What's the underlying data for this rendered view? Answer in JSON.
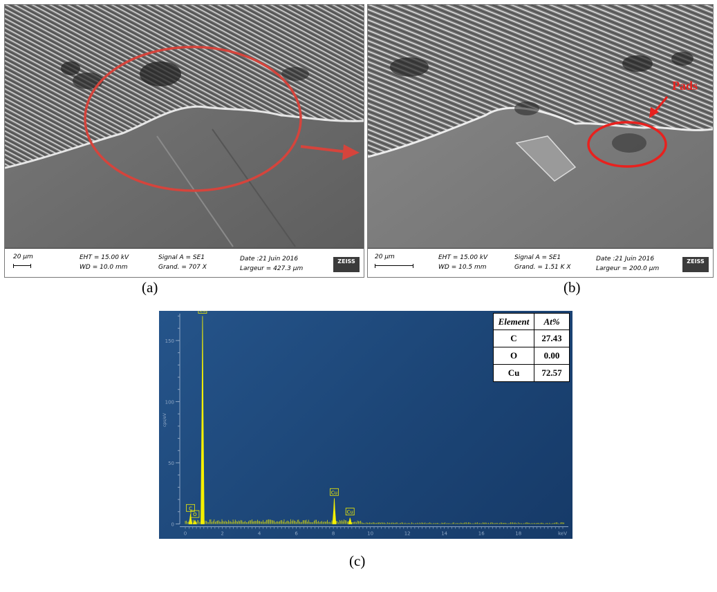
{
  "panels": {
    "a": {
      "label": "(a)",
      "scale": "20 µm",
      "eht": "EHT = 15.00 kV",
      "wd": "WD = 10.0 mm",
      "signal": "Signal A = SE1",
      "grand": "Grand. =    707 X",
      "date": "Date :21 Juin 2016",
      "largeur": "Largeur = 427.3 µm",
      "logo": "ZEISS"
    },
    "b": {
      "label": "(b)",
      "scale": "20 µm",
      "eht": "EHT = 15.00 kV",
      "wd": "WD = 10.5 mm",
      "signal": "Signal A = SE1",
      "grand": "Grand. =    1.51 K X",
      "date": "Date :21 Juin 2016",
      "largeur": "Largeur = 200.0 µm",
      "logo": "ZEISS",
      "annotation": "Pads"
    },
    "c": {
      "label": "(c)"
    }
  },
  "colors": {
    "annotation_red": "#e8211e",
    "eds_background": "#1e4a7c",
    "spectrum_yellow": "#f5f000",
    "axis_text": "#8fa7c4"
  },
  "table": {
    "headers": [
      "Element",
      "At%"
    ],
    "rows": [
      {
        "element": "C",
        "at": "27.43"
      },
      {
        "element": "O",
        "at": "0.00"
      },
      {
        "element": "Cu",
        "at": "72.57"
      }
    ]
  },
  "chart_data": {
    "type": "line",
    "title": "",
    "xlabel": "keV",
    "ylabel": "cps/eV",
    "xlim": [
      -0.3,
      20.7
    ],
    "ylim": [
      -2,
      172
    ],
    "xticks": [
      0,
      2,
      4,
      6,
      8,
      10,
      12,
      14,
      16,
      18
    ],
    "yticks": [
      0,
      50,
      100,
      150
    ],
    "peaks": [
      {
        "label": "C",
        "x": 0.28,
        "y": 8
      },
      {
        "label": "O",
        "x": 0.52,
        "y": 3
      },
      {
        "label": "Cu",
        "x": 0.93,
        "y": 170
      },
      {
        "label": "Cu",
        "x": 8.05,
        "y": 21
      },
      {
        "label": "Cu",
        "x": 8.9,
        "y": 5
      }
    ]
  }
}
